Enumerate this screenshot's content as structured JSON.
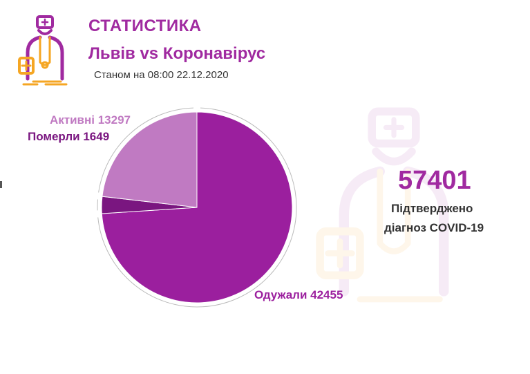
{
  "header": {
    "title": "СТАТИСТИКА",
    "subtitle": "Львів vs Коронавірус",
    "as_of": "Станом на 08:00 22.12.2020"
  },
  "summary": {
    "total": "57401",
    "label_line1": "Підтверджено",
    "label_line2": "діагноз COVID-19"
  },
  "icons": {
    "logo": "doctor-icon",
    "watermark": "doctor-icon"
  },
  "colors": {
    "accent": "#a02aa0",
    "recovered": "#9b1f9e",
    "active": "#c07ac2",
    "dead": "#7a1680",
    "logo_orange": "#f5a623"
  },
  "chart_data": {
    "type": "pie",
    "title": "",
    "slices": [
      {
        "name": "Одужали",
        "value": 42455,
        "label": "Одужали 42455",
        "color": "#9b1f9e"
      },
      {
        "name": "Померли",
        "value": 1649,
        "label": "Померли 1649",
        "color": "#7a1680"
      },
      {
        "name": "Активні",
        "value": 13297,
        "label": "Активні 13297",
        "color": "#c07ac2"
      }
    ]
  }
}
